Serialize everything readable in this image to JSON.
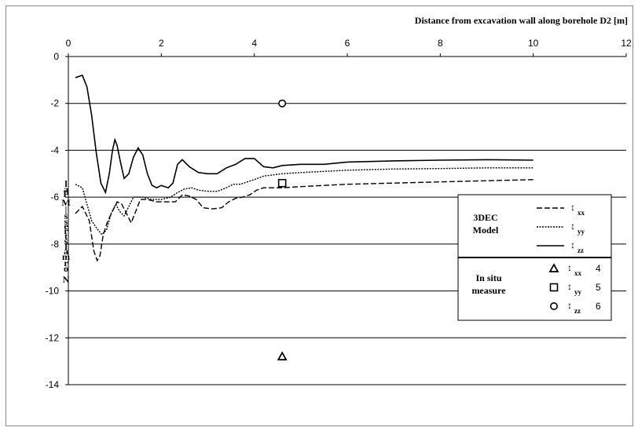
{
  "chart_data": {
    "type": "line",
    "xlabel": "Distance from excavation wall along borehole D2 [m]",
    "ylabel": "Normal stress, MPa",
    "xlim": [
      0,
      12
    ],
    "ylim": [
      -14,
      0
    ],
    "x_ticks": [
      "0",
      "2",
      "4",
      "6",
      "8",
      "10",
      "12"
    ],
    "y_ticks": [
      "0",
      "-2",
      "-4",
      "-6",
      "-8",
      "-10",
      "-12",
      "-14"
    ],
    "grid": "horizontal",
    "legend_position": "right",
    "legend": {
      "group_model": "3DEC Model",
      "group_measure": "In situ measure",
      "model_entries": [
        {
          "symbol": "↕",
          "sub": "xx",
          "num": ""
        },
        {
          "symbol": "↕",
          "sub": "yy",
          "num": ""
        },
        {
          "symbol": "↕",
          "sub": "zz",
          "num": ""
        }
      ],
      "measure_entries": [
        {
          "symbol": "↕",
          "sub": "xx",
          "num": "4"
        },
        {
          "symbol": "↕",
          "sub": "yy",
          "num": "5"
        },
        {
          "symbol": "↕",
          "sub": "zz",
          "num": "6"
        }
      ]
    },
    "series": [
      {
        "style": "dashed",
        "points": [
          [
            0.15,
            -6.7
          ],
          [
            0.3,
            -6.4
          ],
          [
            0.45,
            -7.0
          ],
          [
            0.55,
            -8.3
          ],
          [
            0.62,
            -8.7
          ],
          [
            0.68,
            -8.5
          ],
          [
            0.75,
            -7.6
          ],
          [
            0.85,
            -7.0
          ],
          [
            0.95,
            -6.6
          ],
          [
            1.05,
            -6.2
          ],
          [
            1.15,
            -6.3
          ],
          [
            1.25,
            -6.7
          ],
          [
            1.35,
            -7.1
          ],
          [
            1.45,
            -6.6
          ],
          [
            1.55,
            -6.1
          ],
          [
            1.7,
            -6.1
          ],
          [
            1.9,
            -6.2
          ],
          [
            2.1,
            -6.2
          ],
          [
            2.3,
            -6.2
          ],
          [
            2.45,
            -5.9
          ],
          [
            2.6,
            -5.95
          ],
          [
            2.75,
            -6.1
          ],
          [
            2.9,
            -6.45
          ],
          [
            3.1,
            -6.5
          ],
          [
            3.3,
            -6.45
          ],
          [
            3.45,
            -6.2
          ],
          [
            3.6,
            -6.05
          ],
          [
            3.75,
            -6.0
          ],
          [
            3.9,
            -5.9
          ],
          [
            4.05,
            -5.7
          ],
          [
            4.2,
            -5.6
          ],
          [
            4.4,
            -5.6
          ],
          [
            4.6,
            -5.6
          ],
          [
            5.0,
            -5.55
          ],
          [
            5.5,
            -5.5
          ],
          [
            6.0,
            -5.45
          ],
          [
            7.0,
            -5.4
          ],
          [
            8.0,
            -5.35
          ],
          [
            9.0,
            -5.3
          ],
          [
            10.0,
            -5.25
          ]
        ]
      },
      {
        "style": "dotted",
        "points": [
          [
            0.15,
            -5.45
          ],
          [
            0.3,
            -5.6
          ],
          [
            0.4,
            -6.3
          ],
          [
            0.5,
            -7.0
          ],
          [
            0.6,
            -7.3
          ],
          [
            0.72,
            -7.6
          ],
          [
            0.82,
            -7.4
          ],
          [
            0.92,
            -6.7
          ],
          [
            1.02,
            -6.3
          ],
          [
            1.1,
            -6.6
          ],
          [
            1.2,
            -6.8
          ],
          [
            1.3,
            -6.4
          ],
          [
            1.4,
            -6.0
          ],
          [
            1.6,
            -6.0
          ],
          [
            1.8,
            -6.1
          ],
          [
            2.0,
            -6.1
          ],
          [
            2.2,
            -6.0
          ],
          [
            2.35,
            -5.8
          ],
          [
            2.5,
            -5.65
          ],
          [
            2.65,
            -5.6
          ],
          [
            2.8,
            -5.7
          ],
          [
            3.0,
            -5.75
          ],
          [
            3.2,
            -5.75
          ],
          [
            3.4,
            -5.6
          ],
          [
            3.55,
            -5.45
          ],
          [
            3.7,
            -5.45
          ],
          [
            3.85,
            -5.35
          ],
          [
            4.0,
            -5.25
          ],
          [
            4.2,
            -5.1
          ],
          [
            4.4,
            -5.05
          ],
          [
            4.6,
            -5.0
          ],
          [
            5.0,
            -4.95
          ],
          [
            5.5,
            -4.9
          ],
          [
            6.0,
            -4.85
          ],
          [
            7.0,
            -4.8
          ],
          [
            8.0,
            -4.78
          ],
          [
            9.0,
            -4.75
          ],
          [
            10.0,
            -4.75
          ]
        ]
      },
      {
        "style": "solid",
        "points": [
          [
            0.15,
            -0.9
          ],
          [
            0.3,
            -0.8
          ],
          [
            0.4,
            -1.3
          ],
          [
            0.5,
            -2.5
          ],
          [
            0.6,
            -4.1
          ],
          [
            0.7,
            -5.4
          ],
          [
            0.8,
            -5.8
          ],
          [
            0.88,
            -5.0
          ],
          [
            0.95,
            -4.0
          ],
          [
            1.0,
            -3.55
          ],
          [
            1.05,
            -3.8
          ],
          [
            1.12,
            -4.5
          ],
          [
            1.2,
            -5.2
          ],
          [
            1.3,
            -5.0
          ],
          [
            1.4,
            -4.3
          ],
          [
            1.5,
            -3.9
          ],
          [
            1.6,
            -4.2
          ],
          [
            1.7,
            -5.0
          ],
          [
            1.8,
            -5.5
          ],
          [
            1.9,
            -5.6
          ],
          [
            2.0,
            -5.5
          ],
          [
            2.15,
            -5.6
          ],
          [
            2.25,
            -5.4
          ],
          [
            2.35,
            -4.6
          ],
          [
            2.45,
            -4.4
          ],
          [
            2.6,
            -4.7
          ],
          [
            2.8,
            -4.95
          ],
          [
            3.0,
            -5.0
          ],
          [
            3.2,
            -5.0
          ],
          [
            3.4,
            -4.75
          ],
          [
            3.6,
            -4.6
          ],
          [
            3.8,
            -4.35
          ],
          [
            4.0,
            -4.35
          ],
          [
            4.2,
            -4.7
          ],
          [
            4.4,
            -4.75
          ],
          [
            4.6,
            -4.65
          ],
          [
            5.0,
            -4.6
          ],
          [
            5.5,
            -4.6
          ],
          [
            6.0,
            -4.5
          ],
          [
            7.0,
            -4.45
          ],
          [
            8.0,
            -4.42
          ],
          [
            9.0,
            -4.4
          ],
          [
            10.0,
            -4.42
          ]
        ]
      }
    ],
    "measurements": [
      {
        "marker": "triangle",
        "x": 4.6,
        "y": -12.8
      },
      {
        "marker": "square",
        "x": 4.6,
        "y": -5.4
      },
      {
        "marker": "circle",
        "x": 4.6,
        "y": -2.0
      }
    ]
  }
}
